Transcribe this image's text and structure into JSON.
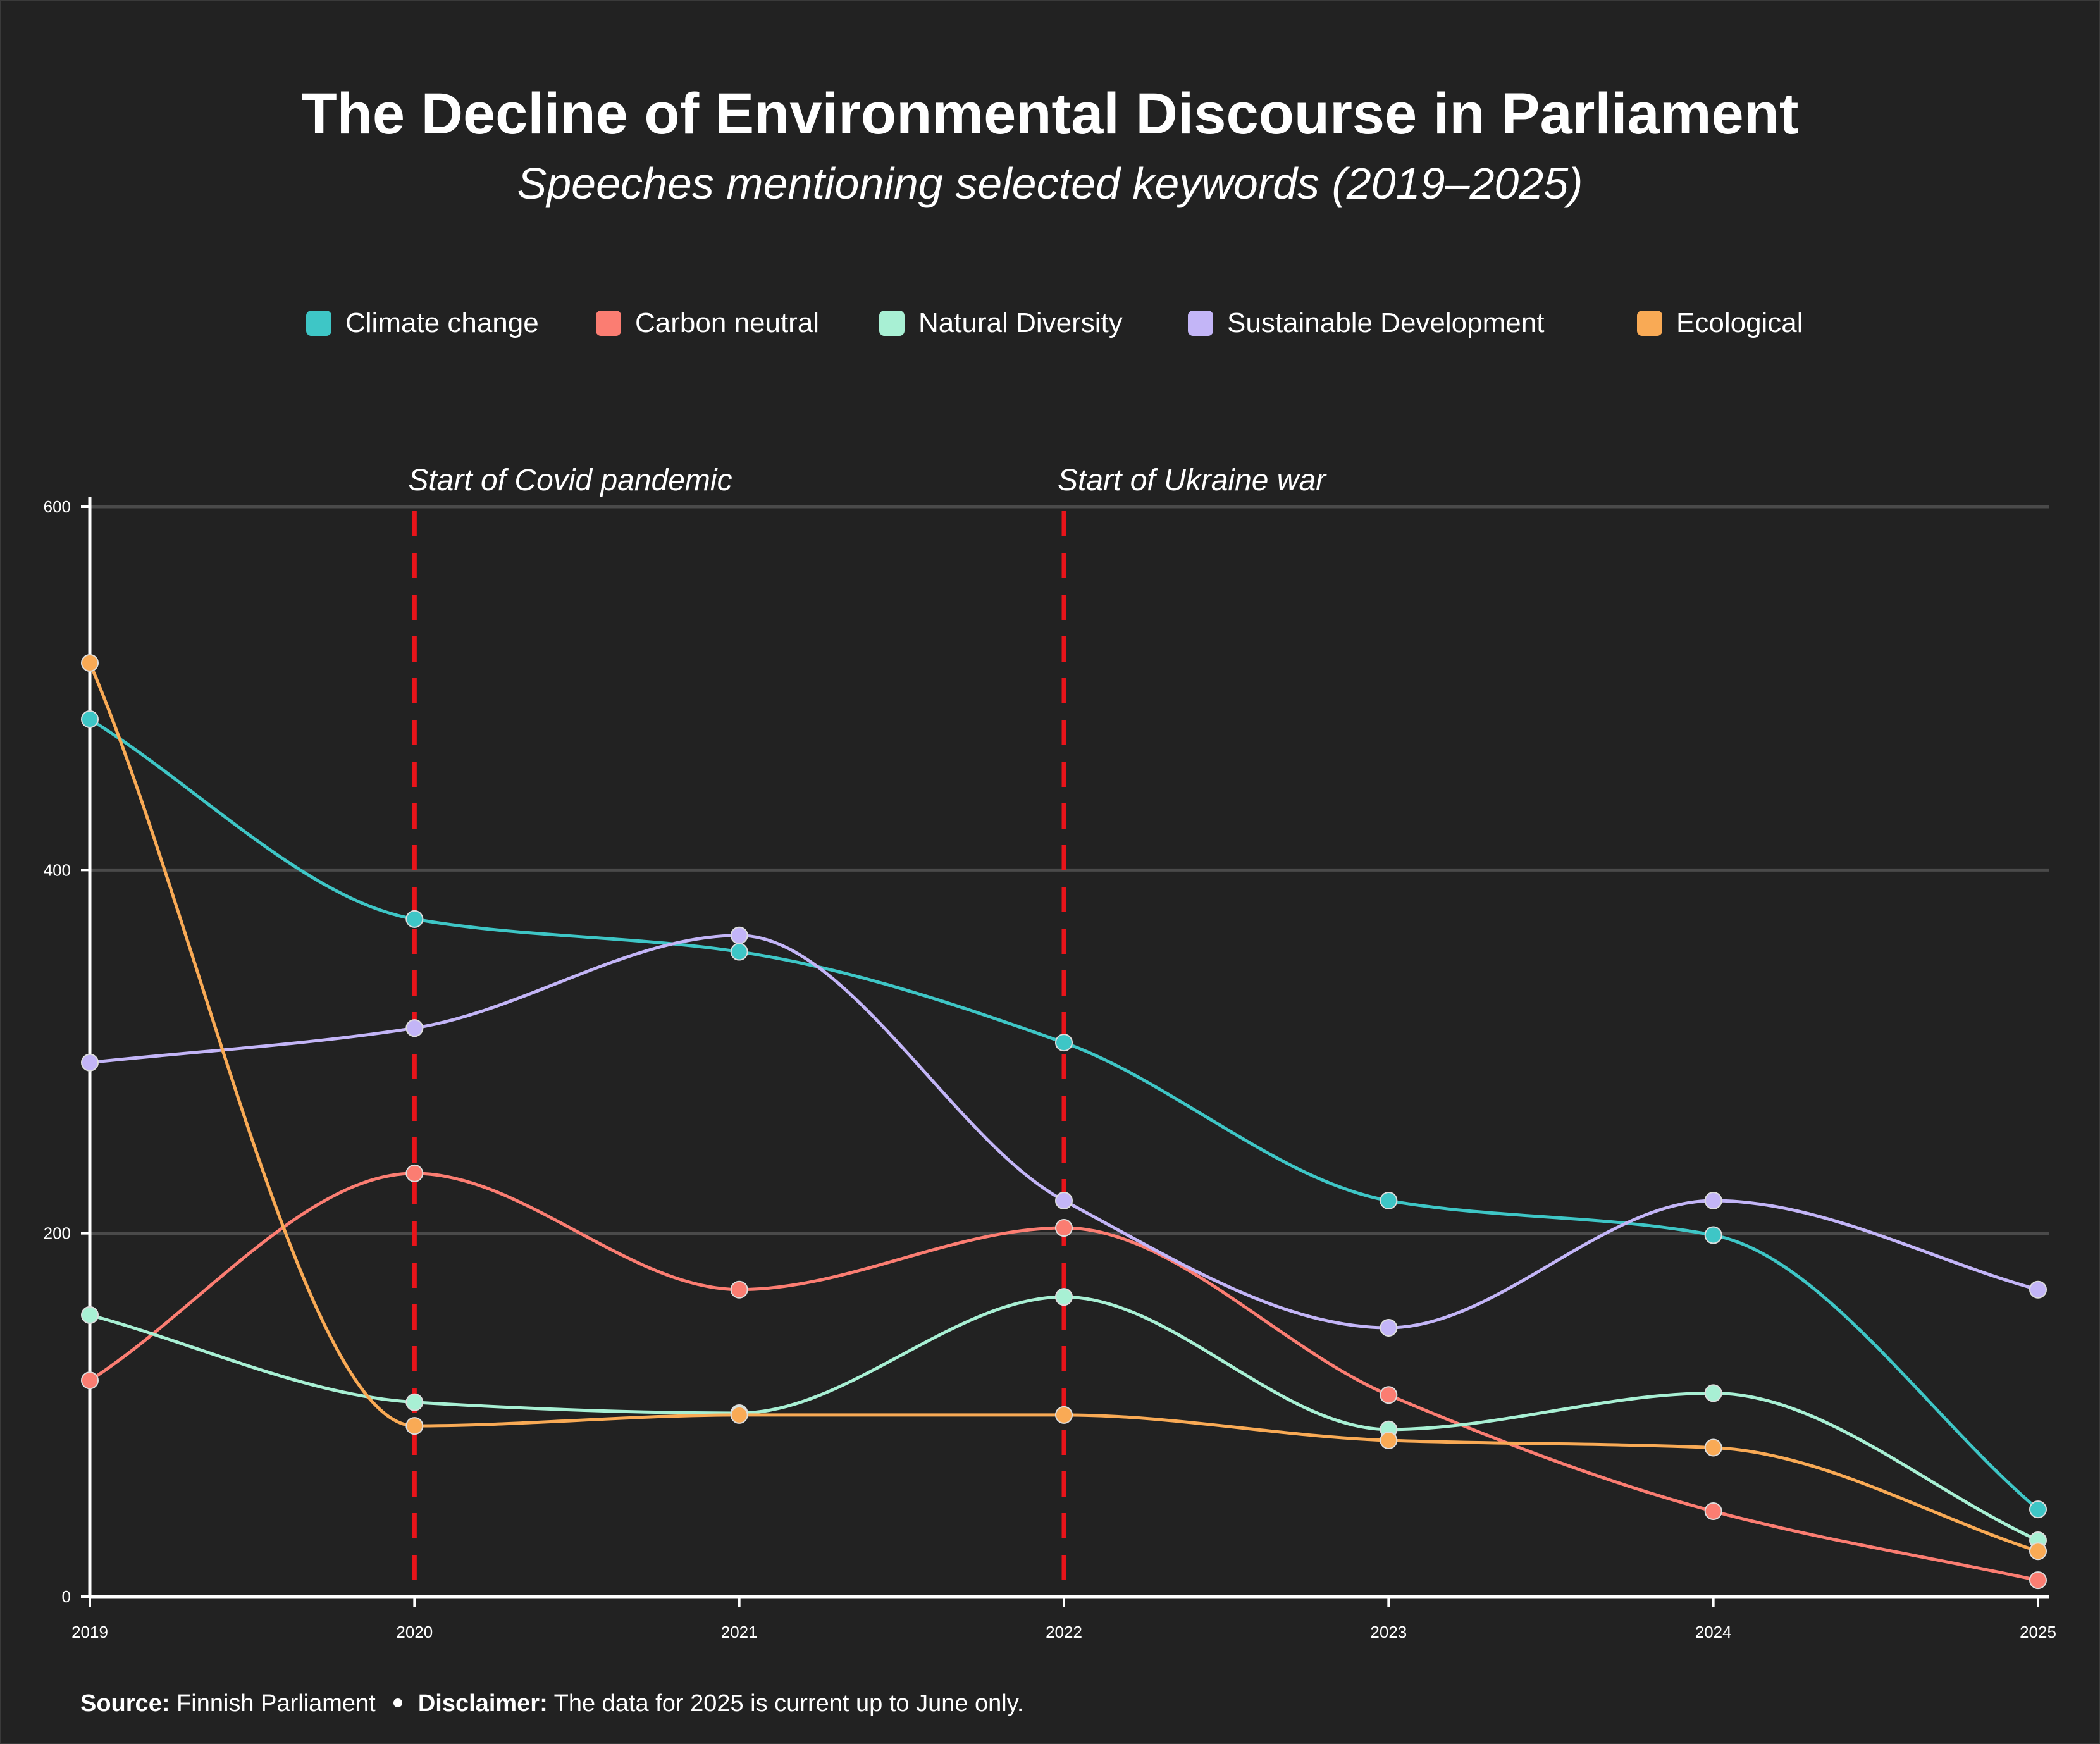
{
  "title": "The Decline of Environmental Discourse in Parliament",
  "subtitle": "Speeches mentioning selected keywords (2019–2025)",
  "footer": {
    "source_label": "Source:",
    "source_text": "Finnish Parliament",
    "disclaimer_label": "Disclaimer:",
    "disclaimer_text": "The data for 2025 is current up to June only."
  },
  "chart_data": {
    "type": "line",
    "title": "The Decline of Environmental Discourse in Parliament",
    "subtitle": "Speeches mentioning selected keywords (2019–2025)",
    "x": [
      "2019",
      "2020",
      "2021",
      "2022",
      "2023",
      "2024",
      "2025"
    ],
    "ylim": [
      0,
      600
    ],
    "yticks": [
      0,
      200,
      400,
      600
    ],
    "grid": true,
    "legend_position": "top",
    "series": [
      {
        "name": "Climate change",
        "color": "#3ec6c6",
        "values": [
          483,
          373,
          355,
          305,
          218,
          199,
          48
        ]
      },
      {
        "name": "Carbon neutral",
        "color": "#fb7d72",
        "values": [
          119,
          233,
          169,
          203,
          111,
          47,
          9
        ]
      },
      {
        "name": "Natural Diversity",
        "color": "#a8f0d4",
        "values": [
          155,
          107,
          101,
          165,
          92,
          112,
          31
        ]
      },
      {
        "name": "Sustainable Development",
        "color": "#c3b5f7",
        "values": [
          294,
          313,
          364,
          218,
          148,
          218,
          169
        ]
      },
      {
        "name": "Ecological",
        "color": "#f9aa55",
        "values": [
          514,
          94,
          100,
          100,
          86,
          82,
          25
        ]
      }
    ],
    "annotations": [
      {
        "x": "2020",
        "label": "Start of Covid pandemic",
        "color": "#e8141a"
      },
      {
        "x": "2022",
        "label": "Start of Ukraine war",
        "color": "#e8141a"
      }
    ]
  }
}
